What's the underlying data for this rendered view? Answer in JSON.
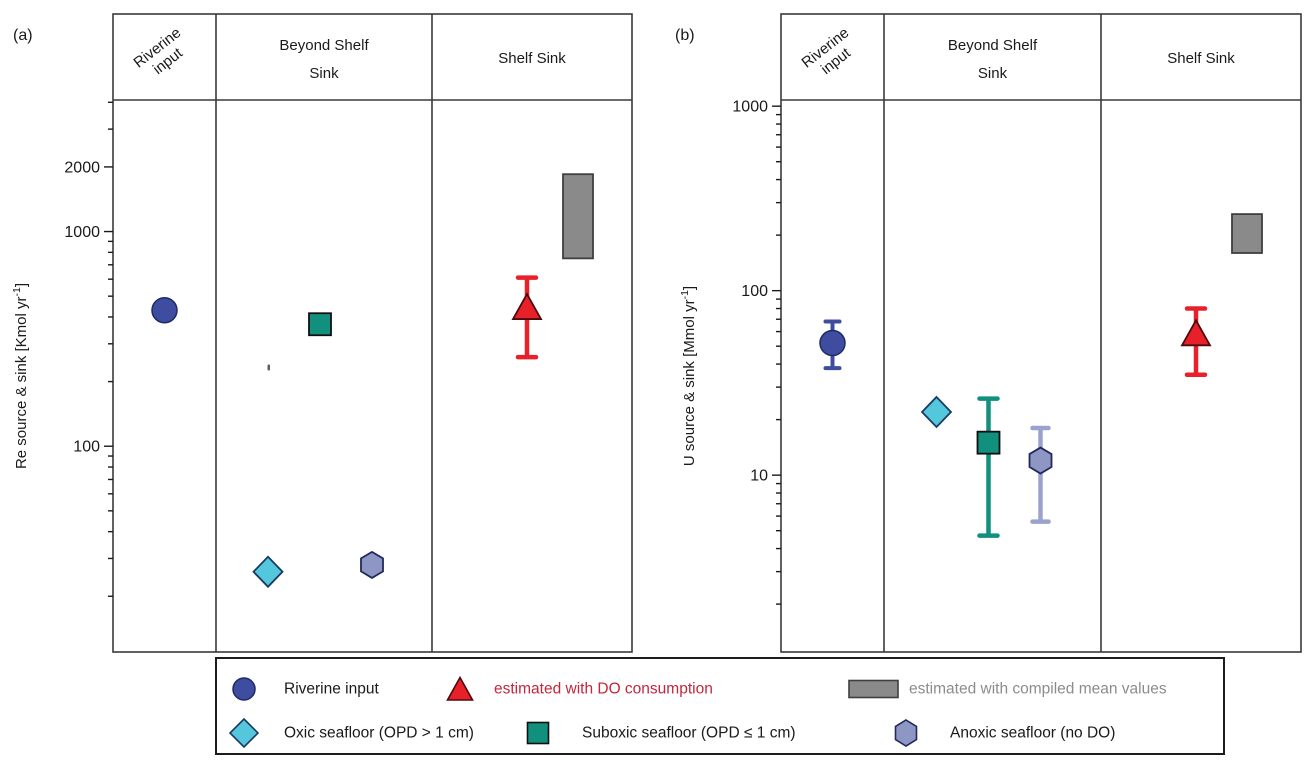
{
  "panel_labels": {
    "a": "(a)",
    "b": "(b)"
  },
  "markers": {
    "circle": {
      "fill": "#3F4DA0",
      "stroke": "#1F2A66",
      "error": "#3F4DA0"
    },
    "diamond": {
      "fill": "#55C7DC",
      "stroke": "#173B63"
    },
    "square": {
      "fill": "#12907E",
      "stroke": "#101010",
      "error": "#12907E"
    },
    "hexagon": {
      "fill": "#8E97C4",
      "stroke": "#20295B",
      "error": "#9AA3CD"
    },
    "triangle": {
      "fill": "#E8202A",
      "stroke": "#4D0A0D",
      "error": "#E8202A"
    },
    "box": {
      "fill": "#8A8A8A",
      "stroke": "#3F3F3F"
    }
  },
  "legend": {
    "items": [
      {
        "key": "riverine",
        "marker": "circle",
        "label": "Riverine input",
        "text_color": "#1a1a1a"
      },
      {
        "key": "do_consumption",
        "marker": "triangle",
        "label": "estimated with DO consumption",
        "text_color": "#C2273D"
      },
      {
        "key": "compiled",
        "marker": "box",
        "label": "estimated with compiled mean values",
        "text_color": "#8C8C8C"
      },
      {
        "key": "oxic",
        "marker": "diamond",
        "label": "Oxic seafloor (OPD > 1 cm)",
        "text_color": "#1a1a1a"
      },
      {
        "key": "suboxic",
        "marker": "square",
        "label": "Suboxic seafloor (OPD ≤ 1 cm)",
        "text_color": "#1a1a1a"
      },
      {
        "key": "anoxic",
        "marker": "hexagon",
        "label": "Anoxic seafloor (no DO)",
        "text_color": "#1a1a1a"
      }
    ]
  },
  "chart_data": [
    {
      "type": "scatter",
      "panel": "a",
      "ylabel": "Re source & sink [Kmol yr⁻¹]",
      "yscale": "log",
      "ylim": [
        11,
        4100
      ],
      "yticks": [
        2000,
        1000,
        100
      ],
      "grid": false,
      "categories": [
        "Riverine input",
        "Beyond Shelf Sink",
        "Shelf Sink"
      ],
      "categories_display": [
        [
          "Riverine",
          "input"
        ],
        [
          "Beyond Shelf",
          "Sink"
        ],
        [
          "Shelf Sink"
        ]
      ],
      "points": [
        {
          "series": "Riverine input",
          "category": "Riverine input",
          "marker": "circle",
          "value": 430
        },
        {
          "series": "Oxic seafloor (OPD > 1 cm)",
          "category": "Beyond Shelf Sink",
          "marker": "diamond",
          "value": 26
        },
        {
          "series": "Suboxic seafloor (OPD ≤ 1 cm)",
          "category": "Beyond Shelf Sink",
          "marker": "square",
          "value": 370
        },
        {
          "series": "Anoxic seafloor (no DO)",
          "category": "Beyond Shelf Sink",
          "marker": "hexagon",
          "value": 28
        },
        {
          "series": "estimated with DO consumption",
          "category": "Shelf Sink",
          "marker": "triangle",
          "value": 440,
          "err_lo": 260,
          "err_hi": 610
        }
      ],
      "boxes": [
        {
          "series": "estimated with compiled mean values",
          "category": "Shelf Sink",
          "lo": 750,
          "hi": 1850
        }
      ]
    },
    {
      "type": "scatter",
      "panel": "b",
      "ylabel": "U source & sink [Mmol yr⁻¹]",
      "yscale": "log",
      "ylim": [
        1.1,
        1080
      ],
      "yticks": [
        1000,
        100,
        10
      ],
      "grid": false,
      "categories": [
        "Riverine input",
        "Beyond Shelf Sink",
        "Shelf Sink"
      ],
      "categories_display": [
        [
          "Riverine",
          "input"
        ],
        [
          "Beyond Shelf",
          "Sink"
        ],
        [
          "Shelf Sink"
        ]
      ],
      "points": [
        {
          "series": "Riverine input",
          "category": "Riverine input",
          "marker": "circle",
          "value": 52,
          "err_lo": 38,
          "err_hi": 68
        },
        {
          "series": "Oxic seafloor (OPD > 1 cm)",
          "category": "Beyond Shelf Sink",
          "marker": "diamond",
          "value": 22
        },
        {
          "series": "Suboxic seafloor (OPD ≤ 1 cm)",
          "category": "Beyond Shelf Sink",
          "marker": "square",
          "value": 15,
          "err_lo": 4.7,
          "err_hi": 26
        },
        {
          "series": "Anoxic seafloor (no DO)",
          "category": "Beyond Shelf Sink",
          "marker": "hexagon",
          "value": 12,
          "err_lo": 5.6,
          "err_hi": 18
        },
        {
          "series": "estimated with DO consumption",
          "category": "Shelf Sink",
          "marker": "triangle",
          "value": 58,
          "err_lo": 35,
          "err_hi": 80
        }
      ],
      "boxes": [
        {
          "series": "estimated with compiled mean values",
          "category": "Shelf Sink",
          "lo": 160,
          "hi": 260
        }
      ]
    }
  ]
}
